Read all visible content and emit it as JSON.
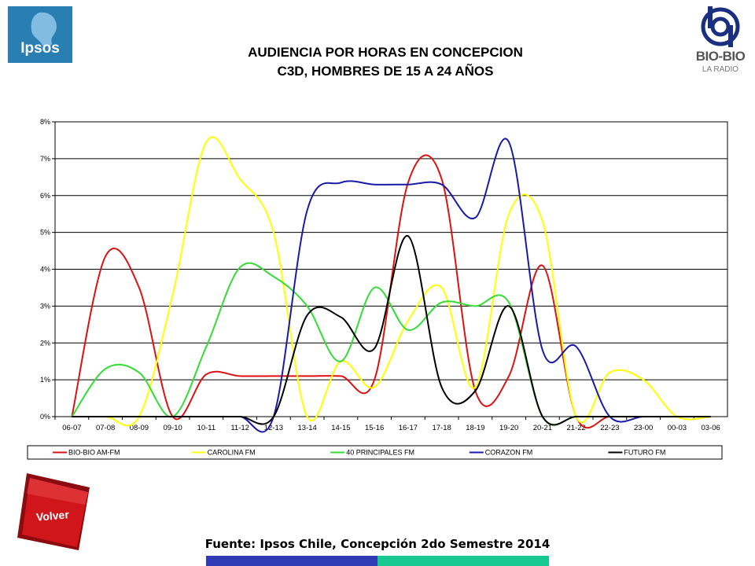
{
  "header": {
    "logo_left_text": "Ipsos",
    "logo_right_text": "BIO-BIO",
    "logo_right_subtext": "LA RADIO"
  },
  "footer": {
    "source": "Fuente: Ipsos Chile, Concepción 2do Semestre 2014",
    "volver_label": "Volver"
  },
  "colors": {
    "ipsos_blue": "#2a7fb2",
    "volver_red": "#d0151b",
    "footer_bar_left": "#2e3bb4",
    "footer_bar_right": "#18c98f"
  },
  "chart_data": {
    "type": "line",
    "title": "AUDIENCIA POR HORAS EN CONCEPCION",
    "subtitle": "C3D, HOMBRES DE 15 A 24 AÑOS",
    "categories": [
      "06-07",
      "07-08",
      "08-09",
      "09-10",
      "10-11",
      "11-12",
      "12-13",
      "13-14",
      "14-15",
      "15-16",
      "16-17",
      "17-18",
      "18-19",
      "19-20",
      "20-21",
      "21-22",
      "22-23",
      "23-00",
      "00-03",
      "03-06"
    ],
    "ylim": [
      0,
      8
    ],
    "yticks": [
      "0%",
      "1%",
      "2%",
      "3%",
      "4%",
      "5%",
      "6%",
      "7%",
      "8%"
    ],
    "grid": true,
    "legend_position": "bottom",
    "series": [
      {
        "name": "BIO-BIO AM-FM",
        "color": "#dd1111",
        "values": [
          0,
          4.35,
          3.5,
          0,
          1.15,
          1.1,
          1.1,
          1.1,
          1.1,
          1.0,
          6.35,
          6.45,
          0.7,
          1.1,
          4.1,
          0,
          0,
          0,
          0,
          0
        ]
      },
      {
        "name": "CAROLINA FM",
        "color": "#ffff00",
        "values": [
          0,
          0,
          0,
          3.3,
          7.45,
          6.45,
          5.0,
          0,
          1.5,
          0.8,
          2.6,
          3.5,
          0.8,
          5.5,
          5.3,
          0,
          1.2,
          1.0,
          0,
          0
        ]
      },
      {
        "name": "40 PRINCIPALES FM",
        "color": "#33dd33",
        "values": [
          0,
          1.3,
          1.2,
          0,
          1.9,
          4.05,
          3.8,
          3.0,
          1.5,
          3.5,
          2.35,
          3.1,
          3.0,
          3.1,
          0,
          0,
          0,
          0,
          0,
          0
        ]
      },
      {
        "name": "CORAZON FM",
        "color": "#1a1aaa",
        "values": [
          0,
          0,
          0,
          0,
          0,
          0,
          0,
          5.6,
          6.35,
          6.3,
          6.3,
          6.3,
          5.4,
          7.45,
          1.8,
          1.9,
          0,
          0,
          0,
          0
        ]
      },
      {
        "name": "FUTURO FM",
        "color": "#000000",
        "values": [
          0,
          0,
          0,
          0,
          0,
          0,
          0,
          2.75,
          2.7,
          1.85,
          4.9,
          0.8,
          0.7,
          3.0,
          0,
          0,
          0,
          0,
          0,
          0
        ]
      }
    ]
  }
}
